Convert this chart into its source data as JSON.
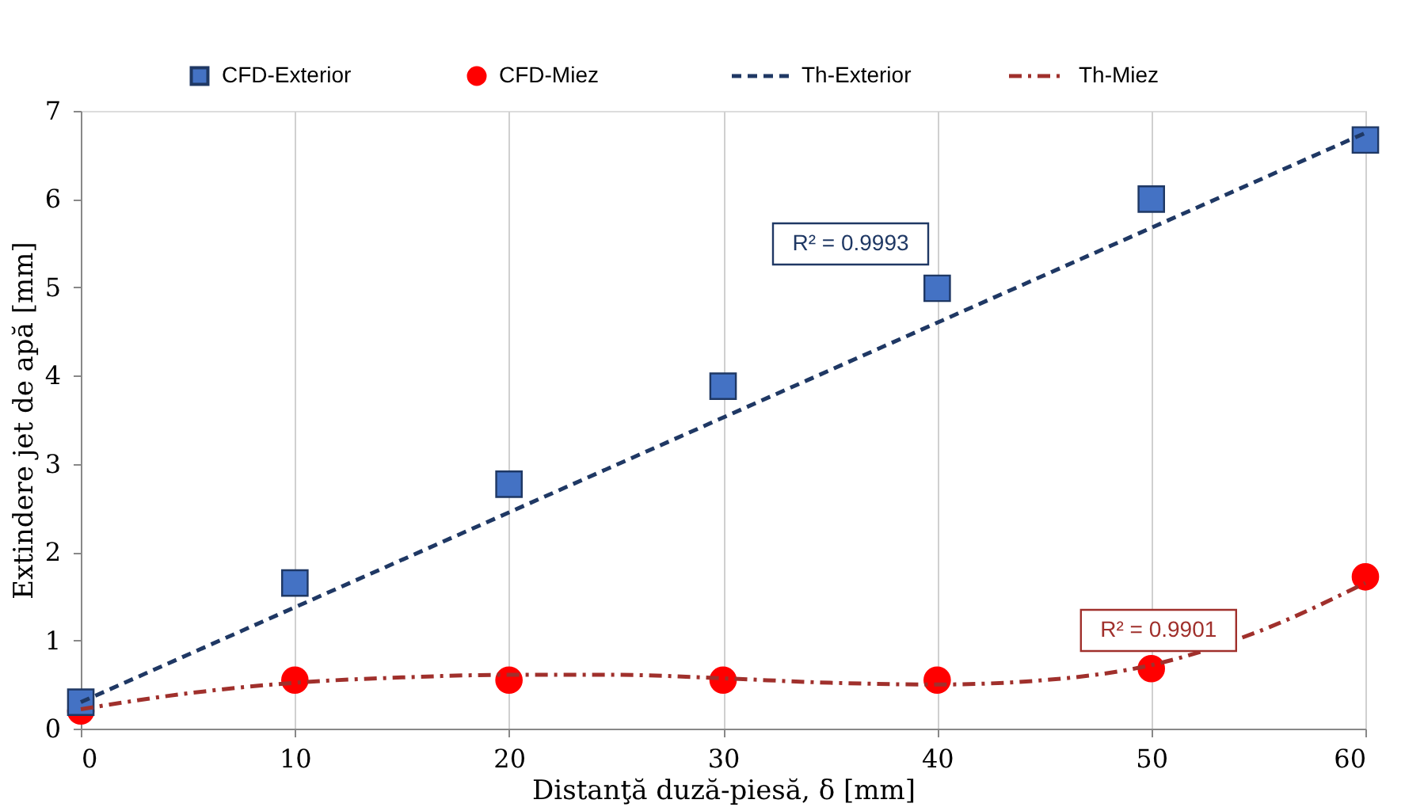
{
  "chart_data": {
    "type": "scatter",
    "xlabel": "Distanţă duză-piesă, δ [mm]",
    "ylabel": "Extindere jet de apă [mm]",
    "xlim": [
      0,
      60
    ],
    "xticks": [
      0,
      10,
      20,
      30,
      40,
      50,
      60
    ],
    "ylim": [
      0,
      7
    ],
    "yticks": [
      0,
      1,
      2,
      3,
      4,
      5,
      6,
      7
    ],
    "grid": "x",
    "legend": "top",
    "series": [
      {
        "name": "CFD-Exterior",
        "marker": "square",
        "color": "#4472c4",
        "x": [
          0,
          10,
          20,
          30,
          40,
          50,
          60
        ],
        "values": [
          0.3,
          1.65,
          2.77,
          3.88,
          4.99,
          6.0,
          6.67
        ]
      },
      {
        "name": "CFD-Miez",
        "marker": "circle",
        "color": "#ff0000",
        "x": [
          0,
          10,
          20,
          30,
          40,
          50,
          60
        ],
        "values": [
          0.2,
          0.55,
          0.55,
          0.55,
          0.55,
          0.68,
          1.72
        ]
      },
      {
        "name": "Th-Exterior",
        "type": "line",
        "line_style": "dashed",
        "color": "#1f3864",
        "x": [
          0,
          60
        ],
        "values": [
          0.3,
          6.75
        ]
      },
      {
        "name": "Th-Miez",
        "type": "line",
        "line_style": "dashdot",
        "color": "#a0302c",
        "x": [
          0,
          5,
          10,
          15,
          20,
          25,
          30,
          35,
          40,
          45,
          50,
          55,
          60
        ],
        "values": [
          0.22,
          0.4,
          0.52,
          0.58,
          0.61,
          0.61,
          0.57,
          0.52,
          0.5,
          0.55,
          0.72,
          1.1,
          1.65
        ]
      }
    ],
    "annotations": [
      "R² = 0.9993",
      "R² = 0.9901"
    ]
  }
}
